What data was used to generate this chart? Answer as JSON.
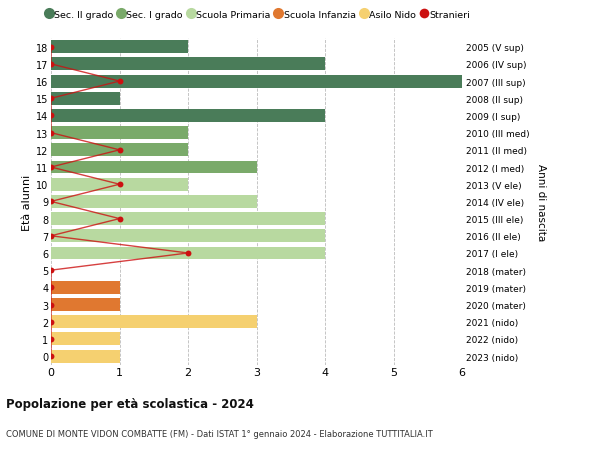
{
  "ages": [
    18,
    17,
    16,
    15,
    14,
    13,
    12,
    11,
    10,
    9,
    8,
    7,
    6,
    5,
    4,
    3,
    2,
    1,
    0
  ],
  "right_labels": [
    "2005 (V sup)",
    "2006 (IV sup)",
    "2007 (III sup)",
    "2008 (II sup)",
    "2009 (I sup)",
    "2010 (III med)",
    "2011 (II med)",
    "2012 (I med)",
    "2013 (V ele)",
    "2014 (IV ele)",
    "2015 (III ele)",
    "2016 (II ele)",
    "2017 (I ele)",
    "2018 (mater)",
    "2019 (mater)",
    "2020 (mater)",
    "2021 (nido)",
    "2022 (nido)",
    "2023 (nido)"
  ],
  "bar_values": [
    2,
    4,
    6,
    1,
    4,
    2,
    2,
    3,
    2,
    3,
    4,
    4,
    4,
    0,
    1,
    1,
    3,
    1,
    1
  ],
  "bar_colors": [
    "#4a7c59",
    "#4a7c59",
    "#4a7c59",
    "#4a7c59",
    "#4a7c59",
    "#7aaa6a",
    "#7aaa6a",
    "#7aaa6a",
    "#b8d9a0",
    "#b8d9a0",
    "#b8d9a0",
    "#b8d9a0",
    "#b8d9a0",
    "#e07830",
    "#e07830",
    "#e07830",
    "#f5d070",
    "#f5d070",
    "#f5d070"
  ],
  "stranieri_values": [
    0,
    0,
    1,
    0,
    0,
    0,
    1,
    0,
    1,
    0,
    1,
    0,
    2,
    0,
    0,
    0,
    0,
    0,
    0
  ],
  "legend_labels": [
    "Sec. II grado",
    "Sec. I grado",
    "Scuola Primaria",
    "Scuola Infanzia",
    "Asilo Nido",
    "Stranieri"
  ],
  "legend_colors": [
    "#4a7c59",
    "#7aaa6a",
    "#b8d9a0",
    "#e07830",
    "#f5d070",
    "#cc1111"
  ],
  "ylabel_left": "Età alunni",
  "ylabel_right": "Anni di nascita",
  "title_main": "Popolazione per età scolastica - 2024",
  "title_sub": "COMUNE DI MONTE VIDON COMBATTE (FM) - Dati ISTAT 1° gennaio 2024 - Elaborazione TUTTITALIA.IT",
  "xlim": [
    0,
    6
  ],
  "background_color": "#ffffff",
  "grid_color": "#bbbbbb"
}
